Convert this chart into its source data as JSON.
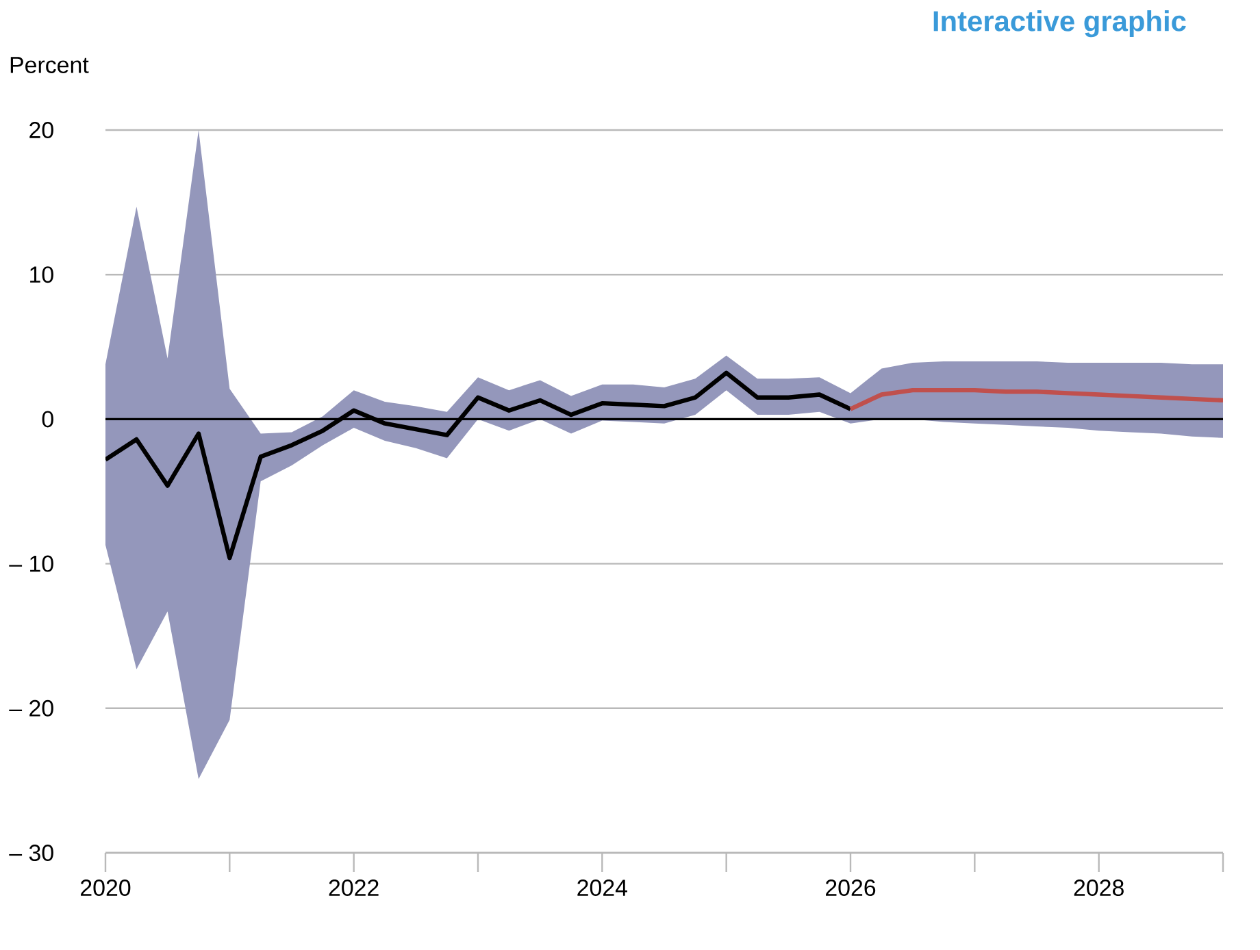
{
  "chart_data": {
    "type": "line",
    "ylabel": "Percent",
    "annotations": [
      "Interactive graphic"
    ],
    "xlim": [
      2020,
      2029
    ],
    "xticks": [
      2020,
      {
        "value": 2021,
        "label": null
      },
      2022,
      {
        "value": 2023,
        "label": null
      },
      2024,
      {
        "value": 2025,
        "label": null
      },
      2026,
      {
        "value": 2027,
        "label": null
      },
      2028,
      {
        "value": 2029,
        "label": null
      }
    ],
    "ylim": [
      -30,
      20
    ],
    "yticks": [
      {
        "value": -30,
        "label": "– 30"
      },
      {
        "value": -20,
        "label": "– 20"
      },
      {
        "value": -10,
        "label": "– 10"
      },
      0,
      10,
      20
    ],
    "grid": "y",
    "ref_lines": [
      {
        "axis": "y",
        "value": 0,
        "color": "#000000"
      }
    ],
    "series": [
      {
        "color": "#000000",
        "x": [
          2020,
          2020.25,
          2020.5,
          2020.75,
          2021,
          2021.25,
          2021.5,
          2021.75,
          2022,
          2022.25,
          2022.5,
          2022.75,
          2023,
          2023.25,
          2023.5,
          2023.75,
          2024,
          2024.25,
          2024.5,
          2024.75,
          2025,
          2025.25,
          2025.5,
          2025.75,
          2026
        ],
        "values": [
          -2.8,
          -1.4,
          -4.6,
          -1.0,
          -9.6,
          -2.6,
          -1.8,
          -0.8,
          0.6,
          -0.3,
          -0.7,
          -1.1,
          1.5,
          0.6,
          1.3,
          0.3,
          1.1,
          1.0,
          0.9,
          1.5,
          3.2,
          1.5,
          1.5,
          1.7,
          0.7
        ],
        "upper": [
          3.8,
          14.7,
          4.2,
          20,
          2.1,
          -1.0,
          -0.9,
          0.2,
          2.0,
          1.2,
          0.9,
          0.5,
          2.9,
          2.0,
          2.7,
          1.6,
          2.4,
          2.4,
          2.2,
          2.8,
          4.4,
          2.8,
          2.8,
          2.9,
          1.8
        ],
        "lower": [
          -8.7,
          -17.3,
          -13.3,
          -24.9,
          -20.8,
          -4.3,
          -3.2,
          -1.8,
          -0.6,
          -1.5,
          -2.0,
          -2.7,
          0.0,
          -0.8,
          0.0,
          -1.0,
          -0.1,
          -0.2,
          -0.3,
          0.3,
          2.0,
          0.3,
          0.3,
          0.5,
          -0.3
        ]
      },
      {
        "color": "#c0504d",
        "x": [
          2026,
          2026.25,
          2026.5,
          2026.75,
          2027,
          2027.25,
          2027.5,
          2027.75,
          2028,
          2028.25,
          2028.5,
          2028.75,
          2029
        ],
        "values": [
          0.7,
          1.7,
          2.0,
          2.0,
          2.0,
          1.9,
          1.9,
          1.8,
          1.7,
          1.6,
          1.5,
          1.4,
          1.3
        ],
        "upper": [
          1.8,
          3.5,
          3.9,
          4.0,
          4.0,
          4.0,
          4.0,
          3.9,
          3.9,
          3.9,
          3.9,
          3.8,
          3.8
        ],
        "lower": [
          -0.3,
          0.0,
          0.0,
          -0.2,
          -0.3,
          -0.4,
          -0.5,
          -0.6,
          -0.8,
          -0.9,
          -1.0,
          -1.2,
          -1.3
        ]
      }
    ]
  }
}
